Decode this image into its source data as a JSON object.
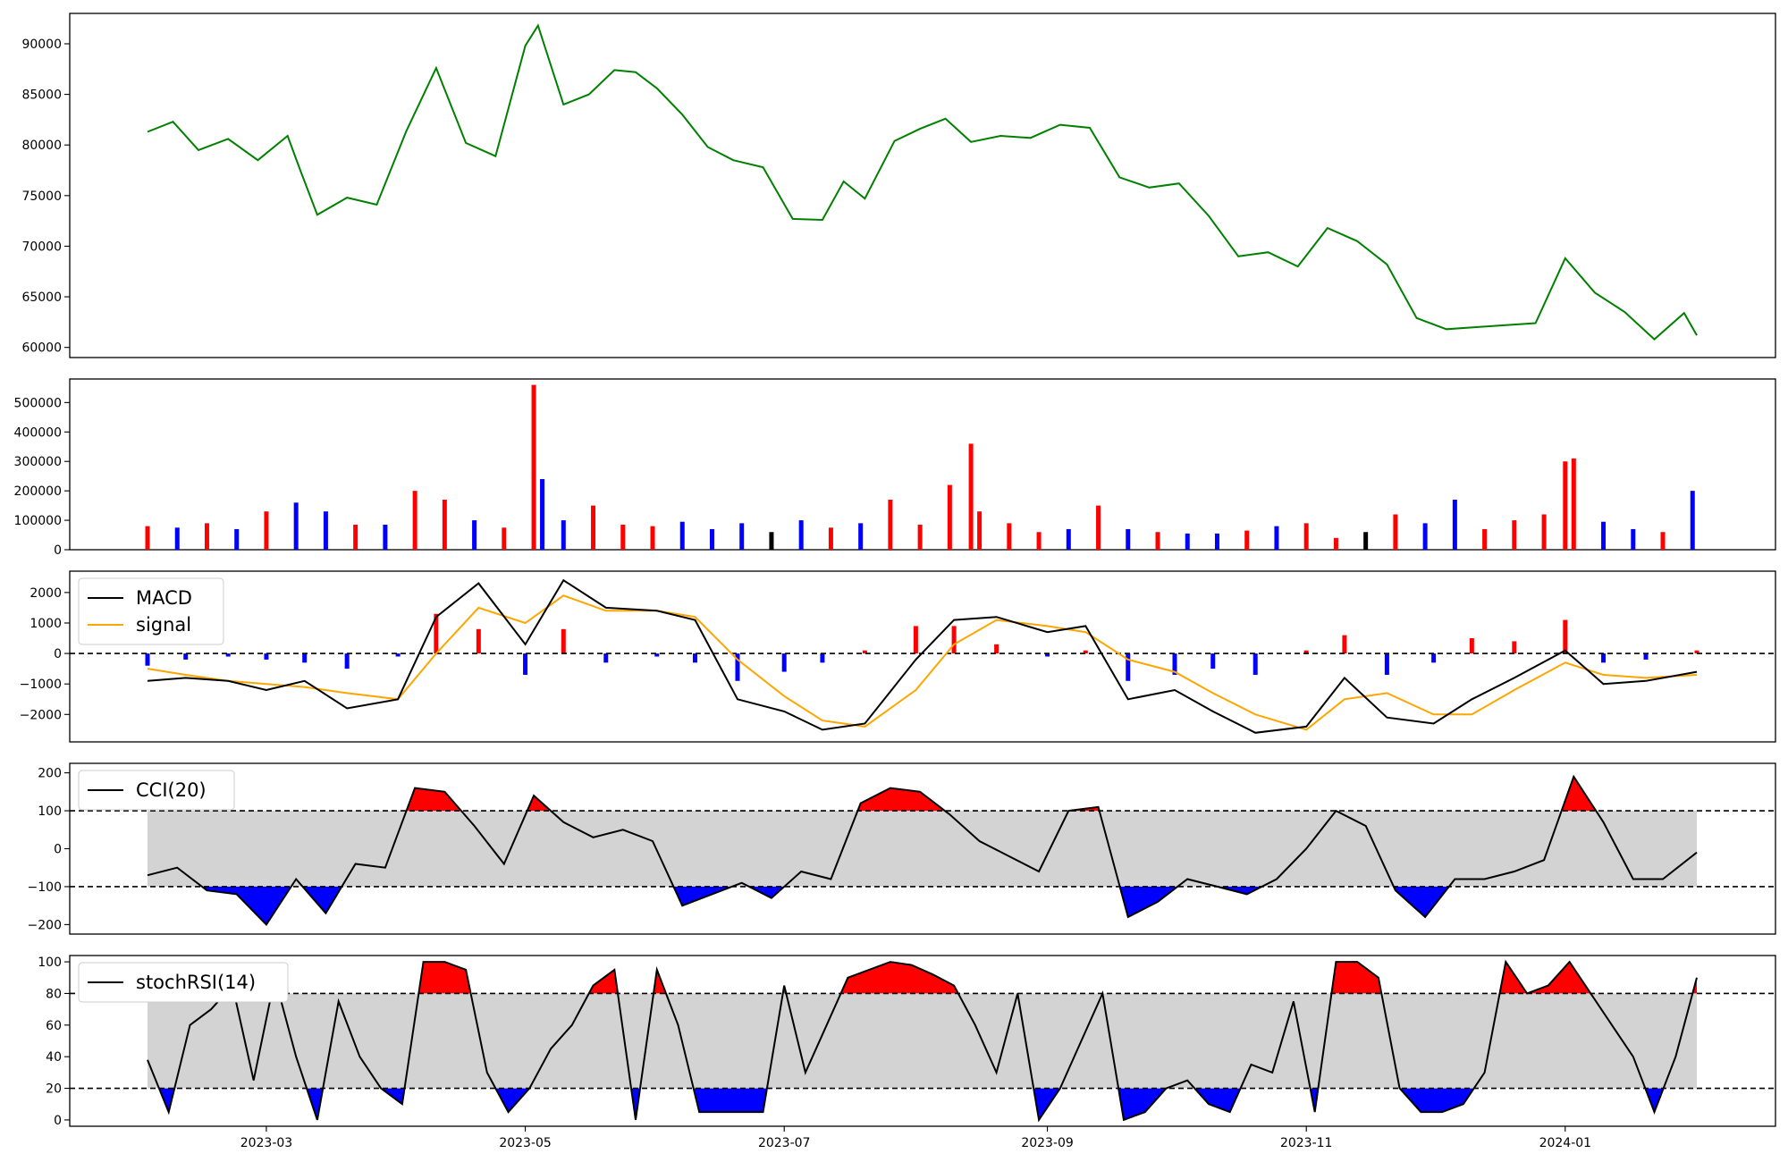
{
  "figure": {
    "background": "#ffffff",
    "x_axis_ticks": [
      "2023-03",
      "2023-05",
      "2023-07",
      "2023-09",
      "2023-11",
      "2024-01"
    ],
    "date_range": [
      "2023-02-01",
      "2024-02-01"
    ],
    "colors": {
      "price": "#008000",
      "up": "#ff0000",
      "down": "#0000ff",
      "neutral": "#000000",
      "signal": "#ffa500",
      "band": "#d3d3d3"
    }
  },
  "chart_data": [
    {
      "type": "line",
      "panel": "price",
      "ylim": [
        59000,
        93000
      ],
      "y_ticks": [
        "60000",
        "65000",
        "70000",
        "75000",
        "80000",
        "85000",
        "90000"
      ],
      "series": [
        {
          "x": [
            "2023-02-01",
            "2023-02-07",
            "2023-02-13",
            "2023-02-20",
            "2023-02-27",
            "2023-03-06",
            "2023-03-09",
            "2023-03-13",
            "2023-03-20",
            "2023-03-27",
            "2023-04-03",
            "2023-04-10",
            "2023-04-17",
            "2023-04-24",
            "2023-05-01",
            "2023-05-04",
            "2023-05-10",
            "2023-05-16",
            "2023-05-22",
            "2023-05-27",
            "2023-06-01",
            "2023-06-07",
            "2023-06-13",
            "2023-06-19",
            "2023-06-26",
            "2023-07-03",
            "2023-07-10",
            "2023-07-15",
            "2023-07-20",
            "2023-07-27",
            "2023-08-02",
            "2023-08-08",
            "2023-08-14",
            "2023-08-21",
            "2023-08-28",
            "2023-09-04",
            "2023-09-11",
            "2023-09-18",
            "2023-09-25",
            "2023-10-02",
            "2023-10-09",
            "2023-10-16",
            "2023-10-23",
            "2023-10-30",
            "2023-11-06",
            "2023-11-13",
            "2023-11-20",
            "2023-11-27",
            "2023-12-04",
            "2023-12-11",
            "2023-12-18",
            "2023-12-25",
            "2024-01-01",
            "2024-01-08",
            "2024-01-15",
            "2024-01-22",
            "2024-01-29",
            "2024-02-01"
          ],
          "values": [
            81300,
            82300,
            79500,
            80600,
            78500,
            80900,
            77500,
            73100,
            74800,
            74100,
            81400,
            87600,
            80200,
            78900,
            89800,
            91800,
            84000,
            85000,
            87400,
            87200,
            85600,
            83000,
            79800,
            78500,
            77800,
            72700,
            72600,
            76400,
            74700,
            80400,
            81600,
            82600,
            80300,
            80900,
            80700,
            82000,
            81700,
            76800,
            75800,
            76200,
            73000,
            69000,
            69400,
            68000,
            71800,
            70500,
            68200,
            62900,
            61800,
            62000,
            62200,
            62400,
            68800,
            65400,
            63500,
            60800,
            63400,
            61200
          ]
        }
      ]
    },
    {
      "type": "bar",
      "panel": "volume",
      "ylim": [
        0,
        580000
      ],
      "y_ticks": [
        "0",
        "100000",
        "200000",
        "300000",
        "400000",
        "500000"
      ],
      "x": [
        "2023-02-01",
        "2023-02-08",
        "2023-02-15",
        "2023-02-22",
        "2023-03-01",
        "2023-03-08",
        "2023-03-15",
        "2023-03-22",
        "2023-03-29",
        "2023-04-05",
        "2023-04-12",
        "2023-04-19",
        "2023-04-26",
        "2023-05-03",
        "2023-05-05",
        "2023-05-10",
        "2023-05-17",
        "2023-05-24",
        "2023-05-31",
        "2023-06-07",
        "2023-06-14",
        "2023-06-21",
        "2023-06-28",
        "2023-07-05",
        "2023-07-12",
        "2023-07-19",
        "2023-07-26",
        "2023-08-02",
        "2023-08-09",
        "2023-08-14",
        "2023-08-16",
        "2023-08-23",
        "2023-08-30",
        "2023-09-06",
        "2023-09-13",
        "2023-09-20",
        "2023-09-27",
        "2023-10-04",
        "2023-10-11",
        "2023-10-18",
        "2023-10-25",
        "2023-11-01",
        "2023-11-08",
        "2023-11-15",
        "2023-11-22",
        "2023-11-29",
        "2023-12-06",
        "2023-12-13",
        "2023-12-20",
        "2023-12-27",
        "2024-01-01",
        "2024-01-03",
        "2024-01-10",
        "2024-01-17",
        "2024-01-24",
        "2024-01-31"
      ],
      "values": [
        80000,
        75000,
        90000,
        70000,
        130000,
        160000,
        130000,
        85000,
        85000,
        200000,
        170000,
        100000,
        75000,
        560000,
        240000,
        100000,
        150000,
        85000,
        80000,
        95000,
        70000,
        90000,
        60000,
        100000,
        75000,
        90000,
        170000,
        85000,
        220000,
        360000,
        130000,
        90000,
        60000,
        70000,
        150000,
        70000,
        60000,
        55000,
        55000,
        65000,
        80000,
        90000,
        40000,
        60000,
        120000,
        90000,
        170000,
        70000,
        100000,
        120000,
        300000,
        310000,
        95000,
        70000,
        60000,
        200000
      ],
      "directions": [
        "up",
        "down",
        "up",
        "down",
        "up",
        "down",
        "down",
        "up",
        "down",
        "up",
        "up",
        "down",
        "up",
        "up",
        "down",
        "down",
        "up",
        "up",
        "up",
        "down",
        "down",
        "down",
        "neutral",
        "down",
        "up",
        "down",
        "up",
        "up",
        "up",
        "up",
        "up",
        "up",
        "up",
        "down",
        "up",
        "down",
        "up",
        "down",
        "down",
        "up",
        "down",
        "up",
        "up",
        "neutral",
        "up",
        "down",
        "down",
        "up",
        "up",
        "up",
        "up",
        "up",
        "down",
        "down",
        "up",
        "down"
      ]
    },
    {
      "type": "line",
      "panel": "macd",
      "ylim": [
        -2900,
        2700
      ],
      "y_ticks": [
        "−2000",
        "−1000",
        "0",
        "1000",
        "2000"
      ],
      "legend": [
        {
          "label": "MACD",
          "color": "#000000"
        },
        {
          "label": "signal",
          "color": "#ffa500"
        }
      ],
      "x": [
        "2023-02-01",
        "2023-02-10",
        "2023-02-20",
        "2023-03-01",
        "2023-03-10",
        "2023-03-20",
        "2023-04-01",
        "2023-04-10",
        "2023-04-20",
        "2023-05-01",
        "2023-05-10",
        "2023-05-20",
        "2023-06-01",
        "2023-06-10",
        "2023-06-20",
        "2023-07-01",
        "2023-07-10",
        "2023-07-20",
        "2023-08-01",
        "2023-08-10",
        "2023-08-20",
        "2023-09-01",
        "2023-09-10",
        "2023-09-20",
        "2023-10-01",
        "2023-10-10",
        "2023-10-20",
        "2023-11-01",
        "2023-11-10",
        "2023-11-20",
        "2023-12-01",
        "2023-12-10",
        "2023-12-20",
        "2024-01-01",
        "2024-01-10",
        "2024-01-20",
        "2024-02-01"
      ],
      "series": [
        {
          "name": "MACD",
          "values": [
            -900,
            -800,
            -900,
            -1200,
            -900,
            -1800,
            -1500,
            1200,
            2300,
            300,
            2400,
            1500,
            1400,
            1100,
            -1500,
            -1900,
            -2500,
            -2300,
            -200,
            1100,
            1200,
            700,
            900,
            -1500,
            -1200,
            -1900,
            -2600,
            -2400,
            -800,
            -2100,
            -2300,
            -1500,
            -800,
            100,
            -1000,
            -900,
            -600
          ]
        },
        {
          "name": "signal",
          "values": [
            -500,
            -700,
            -900,
            -1000,
            -1100,
            -1300,
            -1500,
            0,
            1500,
            1000,
            1900,
            1400,
            1400,
            1200,
            -200,
            -1400,
            -2200,
            -2400,
            -1200,
            300,
            1100,
            900,
            700,
            -200,
            -600,
            -1300,
            -2000,
            -2500,
            -1500,
            -1300,
            -2000,
            -2000,
            -1200,
            -300,
            -700,
            -800,
            -700
          ]
        }
      ],
      "histogram": [
        -400,
        -200,
        -100,
        -200,
        -300,
        -500,
        -100,
        1300,
        800,
        -700,
        800,
        -300,
        -100,
        -300,
        -900,
        -600,
        -300,
        100,
        900,
        900,
        300,
        -100,
        100,
        -900,
        -700,
        -500,
        -700,
        100,
        600,
        -700,
        -300,
        500,
        400,
        1100,
        -300,
        -200,
        100
      ],
      "zero_line": 0
    },
    {
      "type": "line",
      "panel": "cci",
      "ylim": [
        -225,
        225
      ],
      "y_ticks": [
        "−200",
        "−100",
        "0",
        "100",
        "200"
      ],
      "legend": [
        {
          "label": "CCI(20)",
          "color": "#000000"
        }
      ],
      "thresholds": [
        100,
        -100
      ],
      "x": [
        "2023-02-01",
        "2023-02-08",
        "2023-02-15",
        "2023-02-22",
        "2023-03-01",
        "2023-03-08",
        "2023-03-15",
        "2023-03-22",
        "2023-03-29",
        "2023-04-05",
        "2023-04-12",
        "2023-04-19",
        "2023-04-26",
        "2023-05-03",
        "2023-05-10",
        "2023-05-17",
        "2023-05-24",
        "2023-05-31",
        "2023-06-07",
        "2023-06-14",
        "2023-06-21",
        "2023-06-28",
        "2023-07-05",
        "2023-07-12",
        "2023-07-19",
        "2023-07-26",
        "2023-08-02",
        "2023-08-09",
        "2023-08-16",
        "2023-08-23",
        "2023-08-30",
        "2023-09-06",
        "2023-09-13",
        "2023-09-20",
        "2023-09-27",
        "2023-10-04",
        "2023-10-11",
        "2023-10-18",
        "2023-10-25",
        "2023-11-01",
        "2023-11-08",
        "2023-11-15",
        "2023-11-22",
        "2023-11-29",
        "2023-12-06",
        "2023-12-13",
        "2023-12-20",
        "2023-12-27",
        "2024-01-03",
        "2024-01-10",
        "2024-01-17",
        "2024-01-24",
        "2024-02-01"
      ],
      "series": [
        {
          "name": "CCI(20)",
          "values": [
            -70,
            -50,
            -110,
            -120,
            -200,
            -80,
            -170,
            -40,
            -50,
            160,
            150,
            60,
            -40,
            140,
            70,
            30,
            50,
            20,
            -150,
            -120,
            -90,
            -130,
            -60,
            -80,
            120,
            160,
            150,
            90,
            20,
            -20,
            -60,
            100,
            110,
            -180,
            -140,
            -80,
            -100,
            -120,
            -80,
            0,
            100,
            60,
            -110,
            -180,
            -80,
            -80,
            -60,
            -30,
            190,
            70,
            -80,
            -80,
            -10
          ]
        }
      ]
    },
    {
      "type": "line",
      "panel": "stochrsi",
      "ylim": [
        -4,
        104
      ],
      "y_ticks": [
        "0",
        "20",
        "40",
        "60",
        "80",
        "100"
      ],
      "legend": [
        {
          "label": "stochRSI(14)",
          "color": "#000000"
        }
      ],
      "thresholds": [
        80,
        20
      ],
      "x": [
        "2023-02-01",
        "2023-02-06",
        "2023-02-11",
        "2023-02-16",
        "2023-02-21",
        "2023-02-26",
        "2023-03-03",
        "2023-03-08",
        "2023-03-13",
        "2023-03-18",
        "2023-03-23",
        "2023-03-28",
        "2023-04-02",
        "2023-04-07",
        "2023-04-12",
        "2023-04-17",
        "2023-04-22",
        "2023-04-27",
        "2023-05-02",
        "2023-05-07",
        "2023-05-12",
        "2023-05-17",
        "2023-05-22",
        "2023-05-27",
        "2023-06-01",
        "2023-06-06",
        "2023-06-11",
        "2023-06-16",
        "2023-06-21",
        "2023-06-26",
        "2023-07-01",
        "2023-07-06",
        "2023-07-11",
        "2023-07-16",
        "2023-07-21",
        "2023-07-26",
        "2023-07-31",
        "2023-08-05",
        "2023-08-10",
        "2023-08-15",
        "2023-08-20",
        "2023-08-25",
        "2023-08-30",
        "2023-09-04",
        "2023-09-09",
        "2023-09-14",
        "2023-09-19",
        "2023-09-24",
        "2023-09-29",
        "2023-10-04",
        "2023-10-09",
        "2023-10-14",
        "2023-10-19",
        "2023-10-24",
        "2023-10-29",
        "2023-11-03",
        "2023-11-08",
        "2023-11-13",
        "2023-11-18",
        "2023-11-23",
        "2023-11-28",
        "2023-12-03",
        "2023-12-08",
        "2023-12-13",
        "2023-12-18",
        "2023-12-23",
        "2023-12-28",
        "2024-01-02",
        "2024-01-07",
        "2024-01-12",
        "2024-01-17",
        "2024-01-22",
        "2024-01-27",
        "2024-02-01"
      ],
      "series": [
        {
          "name": "stochRSI(14)",
          "values": [
            38,
            5,
            60,
            70,
            85,
            25,
            90,
            40,
            0,
            75,
            40,
            20,
            10,
            100,
            100,
            95,
            30,
            5,
            20,
            45,
            60,
            85,
            95,
            0,
            95,
            60,
            5,
            5,
            5,
            5,
            85,
            30,
            60,
            90,
            95,
            100,
            98,
            92,
            85,
            60,
            30,
            80,
            0,
            20,
            50,
            80,
            0,
            5,
            20,
            25,
            10,
            5,
            35,
            30,
            75,
            5,
            100,
            100,
            90,
            20,
            5,
            5,
            10,
            30,
            100,
            80,
            85,
            100,
            80,
            60,
            40,
            5,
            40,
            90
          ]
        }
      ]
    }
  ]
}
